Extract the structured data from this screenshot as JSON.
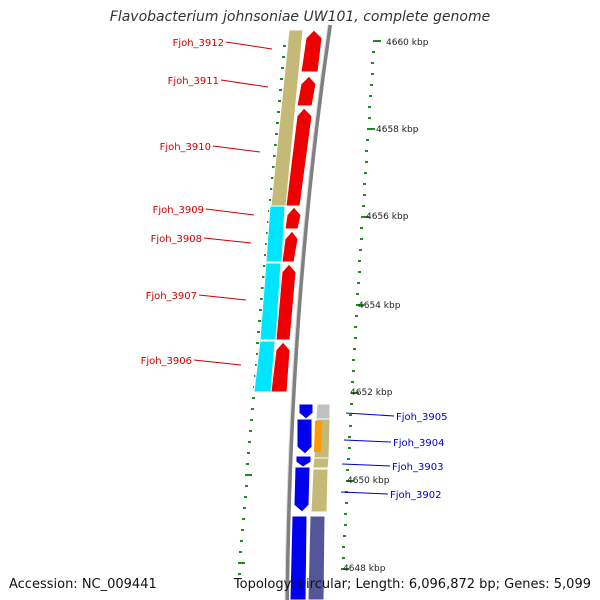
{
  "title": "Flavobacterium johnsoniae UW101, complete genome",
  "footer": {
    "accession": "Accession: NC_009441",
    "topology": "Topology: circular; Length: 6,096,872 bp; Genes: 5,099"
  },
  "colors": {
    "left_label": "#cc0000",
    "right_label": "#0000cc",
    "tick": "#1f8a1f",
    "backbone": "#808080"
  },
  "kbp_labels": [
    "4660 kbp",
    "4658 kbp",
    "4656 kbp",
    "4654 kbp",
    "4652 kbp",
    "4650 kbp",
    "4648 kbp"
  ],
  "genes_left": [
    "Fjoh_3912",
    "Fjoh_3911",
    "Fjoh_3910",
    "Fjoh_3909",
    "Fjoh_3908",
    "Fjoh_3907",
    "Fjoh_3906"
  ],
  "genes_right": [
    "Fjoh_3905",
    "Fjoh_3904",
    "Fjoh_3903",
    "Fjoh_3902"
  ]
}
